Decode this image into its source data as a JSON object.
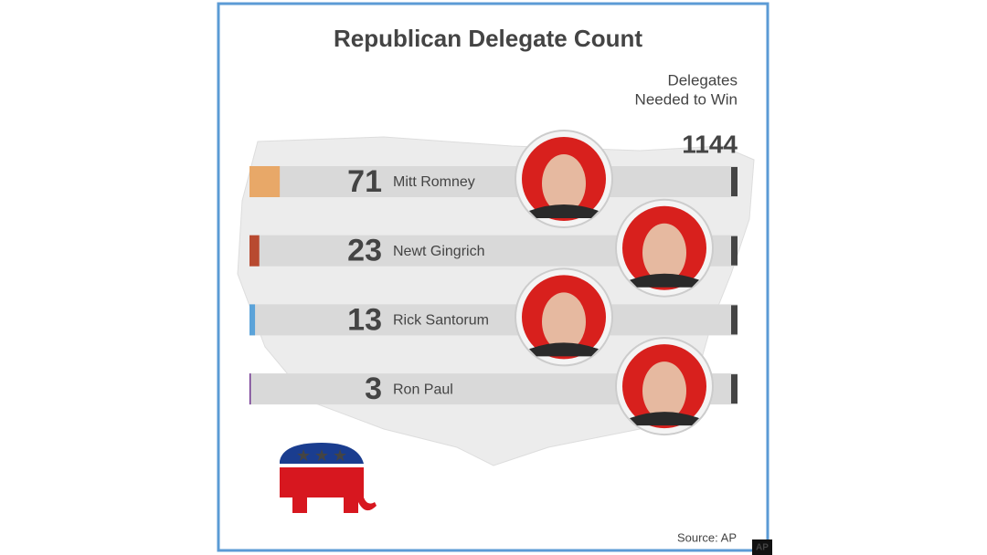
{
  "chart_data": {
    "type": "bar",
    "orientation": "horizontal",
    "title": "Republican Delegate Count",
    "target_label": [
      "Delegates",
      "Needed to Win"
    ],
    "target": 1144,
    "categories": [
      "Mitt Romney",
      "Newt Gingrich",
      "Rick Santorum",
      "Ron Paul"
    ],
    "values": [
      71,
      23,
      13,
      3
    ],
    "colors": [
      "#e8a868",
      "#b84a30",
      "#5ba3d9",
      "#6a2b8c"
    ],
    "xlim": [
      0,
      1144
    ],
    "source": "Source:  AP",
    "badge": "AP"
  }
}
